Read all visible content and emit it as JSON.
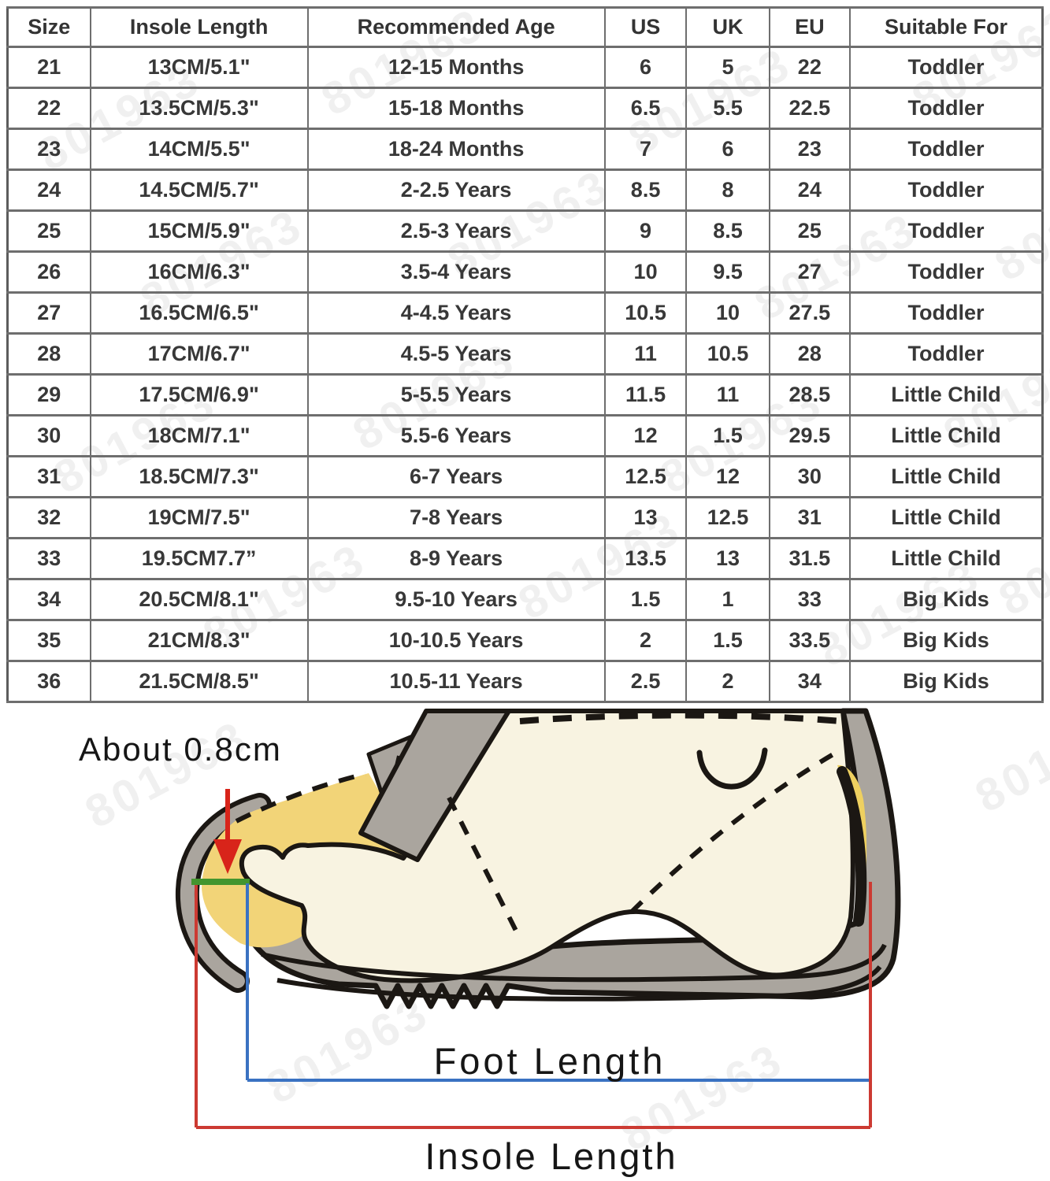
{
  "page": {
    "watermark_text": "801963"
  },
  "size_chart": {
    "columns": [
      "Size",
      "Insole Length",
      "Recommended Age",
      "US",
      "UK",
      "EU",
      "Suitable For"
    ],
    "rows": [
      [
        "21",
        "13CM/5.1\"",
        "12-15 Months",
        "6",
        "5",
        "22",
        "Toddler"
      ],
      [
        "22",
        "13.5CM/5.3\"",
        "15-18 Months",
        "6.5",
        "5.5",
        "22.5",
        "Toddler"
      ],
      [
        "23",
        "14CM/5.5\"",
        "18-24 Months",
        "7",
        "6",
        "23",
        "Toddler"
      ],
      [
        "24",
        "14.5CM/5.7\"",
        "2-2.5 Years",
        "8.5",
        "8",
        "24",
        "Toddler"
      ],
      [
        "25",
        "15CM/5.9\"",
        "2.5-3 Years",
        "9",
        "8.5",
        "25",
        "Toddler"
      ],
      [
        "26",
        "16CM/6.3\"",
        "3.5-4 Years",
        "10",
        "9.5",
        "27",
        "Toddler"
      ],
      [
        "27",
        "16.5CM/6.5\"",
        "4-4.5 Years",
        "10.5",
        "10",
        "27.5",
        "Toddler"
      ],
      [
        "28",
        "17CM/6.7\"",
        "4.5-5 Years",
        "11",
        "10.5",
        "28",
        "Toddler"
      ],
      [
        "29",
        "17.5CM/6.9\"",
        "5-5.5 Years",
        "11.5",
        "11",
        "28.5",
        "Little Child"
      ],
      [
        "30",
        "18CM/7.1\"",
        "5.5-6 Years",
        "12",
        "1.5",
        "29.5",
        "Little Child"
      ],
      [
        "31",
        "18.5CM/7.3\"",
        "6-7 Years",
        "12.5",
        "12",
        "30",
        "Little Child"
      ],
      [
        "32",
        "19CM/7.5\"",
        "7-8 Years",
        "13",
        "12.5",
        "31",
        "Little Child"
      ],
      [
        "33",
        "19.5CM7.7”",
        "8-9 Years",
        "13.5",
        "13",
        "31.5",
        "Little Child"
      ],
      [
        "34",
        "20.5CM/8.1\"",
        "9.5-10 Years",
        "1.5",
        "1",
        "33",
        "Big Kids"
      ],
      [
        "35",
        "21CM/8.3\"",
        "10-10.5 Years",
        "2",
        "1.5",
        "33.5",
        "Big Kids"
      ],
      [
        "36",
        "21.5CM/8.5\"",
        "10.5-11 Years",
        "2.5",
        "2",
        "34",
        "Big Kids"
      ]
    ]
  },
  "diagram": {
    "gap_label": "About 0.8cm",
    "foot_length_label": "Foot Length",
    "insole_length_label": "Insole Length",
    "colors": {
      "shoe_grey": "#aaa59e",
      "insole_yellow": "#f2d478",
      "heel_yellow": "#eed060",
      "foot_cream": "#f8f3e1",
      "outline_black": "#1b1713",
      "arrow_red": "#d8241a",
      "gap_green": "#43952f",
      "foot_length_blue": "#3a72c2",
      "insole_length_red": "#cc3a32"
    }
  }
}
